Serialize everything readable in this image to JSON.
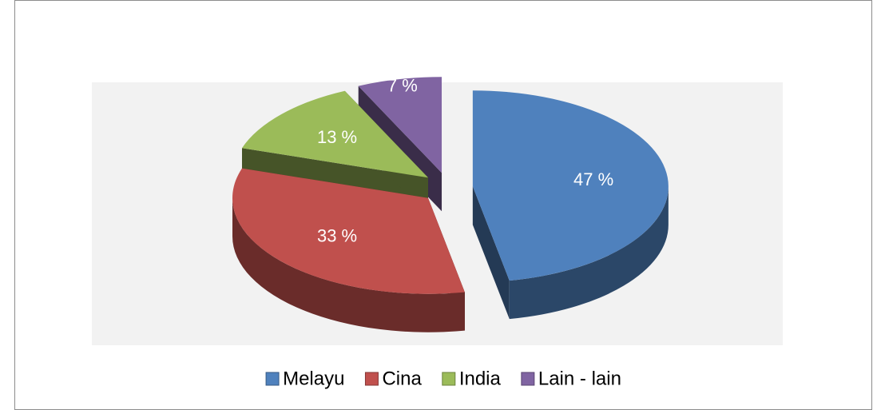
{
  "chart_data": {
    "type": "pie",
    "categories": [
      "Melayu",
      "Cina",
      "India",
      "Lain - lain"
    ],
    "values": [
      47,
      33,
      13,
      7
    ],
    "value_labels": [
      "47 %",
      "33 %",
      "13 %",
      "7 %"
    ],
    "colors": [
      "#4f81bd",
      "#c0504d",
      "#9bbb59",
      "#8064a2"
    ],
    "legend": "bottom"
  }
}
